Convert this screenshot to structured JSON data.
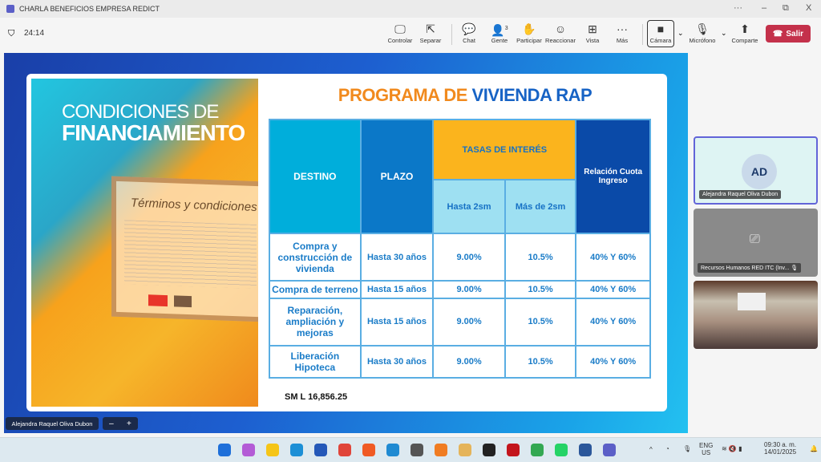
{
  "window": {
    "title": "CHARLA BENEFICIOS EMPRESA REDICT",
    "more": "···",
    "minimize": "–",
    "restore": "⧉",
    "close": "X"
  },
  "toolbar": {
    "timer": "24:14",
    "items": [
      {
        "label": "Controlar",
        "icon": "🖵"
      },
      {
        "label": "Separar",
        "icon": "⇱"
      },
      {
        "label": "Chat",
        "icon": "💬"
      },
      {
        "label": "Gente",
        "icon": "👤",
        "badge": "3"
      },
      {
        "label": "Participar",
        "icon": "✋"
      },
      {
        "label": "Reaccionar",
        "icon": "☺"
      },
      {
        "label": "Vista",
        "icon": "⊞"
      },
      {
        "label": "Más",
        "icon": "···"
      },
      {
        "label": "Cámara",
        "icon": "■"
      },
      {
        "label": "Micrófono",
        "icon": "🎙"
      },
      {
        "label": "Comparte",
        "icon": "⬆"
      }
    ],
    "leave": "Salir"
  },
  "slide": {
    "poster": {
      "line1": "CONDICIONES DE",
      "line2": "FINANCIAMIENTO",
      "screen_text": "Términos y condiciones"
    },
    "heading": {
      "part1": "PROGRAMA DE",
      "part2": "VIVIENDA RAP"
    },
    "table": {
      "headers": {
        "destino": "DESTINO",
        "plazo": "PLAZO",
        "tasas": "TASAS DE INTERÉS",
        "hasta": "Hasta 2sm",
        "mas": "Más de 2sm",
        "relacion": "Relación Cuota Ingreso"
      },
      "rows": [
        [
          "Compra y construcción de vivienda",
          "Hasta 30 años",
          "9.00%",
          "10.5%",
          "40% Y 60%"
        ],
        [
          "Compra de terreno",
          "Hasta 15 años",
          "9.00%",
          "10.5%",
          "40% Y 60%"
        ],
        [
          "Reparación, ampliación y mejoras",
          "Hasta 15 años",
          "9.00%",
          "10.5%",
          "40% Y 60%"
        ],
        [
          "Liberación Hipoteca",
          "Hasta 30 años",
          "9.00%",
          "10.5%",
          "40% Y 60%"
        ]
      ]
    },
    "footer": "SM L 16,856.25"
  },
  "presenter": {
    "name": "Alejandra Raquel Oliva Dubon",
    "zoom_out": "–",
    "zoom_in": "+"
  },
  "participants": [
    {
      "initials": "AD",
      "name": "Alejandra Raquel Oliva Dubon"
    },
    {
      "name": "Recursos Humanos RED ITC (Inv..."
    },
    {
      "name": ""
    }
  ],
  "taskbar": {
    "whatsapp_badge": "70",
    "chrome_badge": "1",
    "lang1": "ENG",
    "lang2": "US",
    "time": "09:30 a. m.",
    "date": "14/01/2025"
  }
}
